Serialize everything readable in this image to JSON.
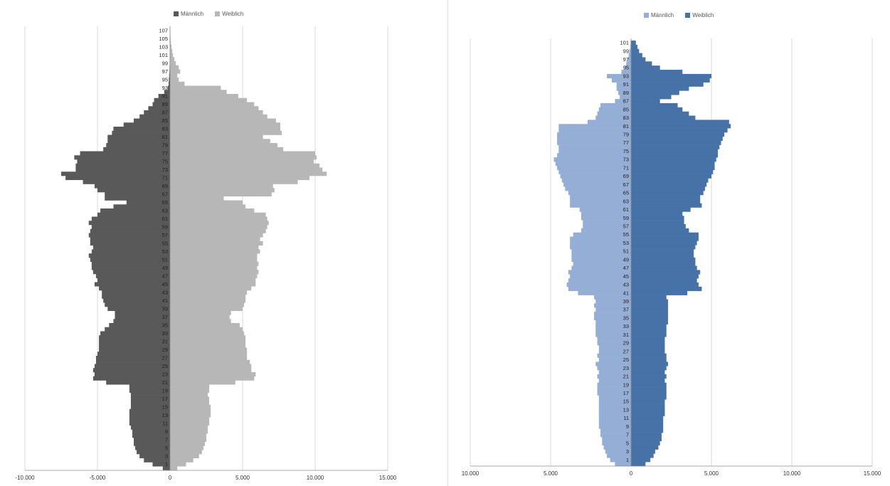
{
  "chart_data": [
    {
      "type": "bar",
      "orientation": "horizontal",
      "legend": [
        "Männlich",
        "Weiblich"
      ],
      "legend_position": "top",
      "xlim": [
        -10000,
        15000
      ],
      "x_ticks": [
        -10000,
        -5000,
        0,
        5000,
        10000,
        15000
      ],
      "x_tick_labels": [
        "-10.000",
        "-5.000",
        "0",
        "5.000",
        "10.000",
        "15.000"
      ],
      "grid": true,
      "colors": {
        "Männlich": "#595959",
        "Weiblich": "#b7b7b7"
      },
      "age_labels": [
        "1",
        "3",
        "5",
        "7",
        "9",
        "11",
        "13",
        "15",
        "17",
        "19",
        "21",
        "23",
        "25",
        "27",
        "29",
        "31",
        "33",
        "35",
        "37",
        "39",
        "41",
        "43",
        "45",
        "47",
        "49",
        "51",
        "53",
        "55",
        "57",
        "59",
        "61",
        "63",
        "65",
        "67",
        "69",
        "71",
        "73",
        "75",
        "77",
        "79",
        "81",
        "83",
        "85",
        "87",
        "89",
        "91",
        "93",
        "95",
        "97",
        "99",
        "101",
        "103",
        "105",
        "107"
      ],
      "ages": [
        0,
        1,
        2,
        3,
        4,
        5,
        6,
        7,
        8,
        9,
        10,
        11,
        12,
        13,
        14,
        15,
        16,
        17,
        18,
        19,
        20,
        21,
        22,
        23,
        24,
        25,
        26,
        27,
        28,
        29,
        30,
        31,
        32,
        33,
        34,
        35,
        36,
        37,
        38,
        39,
        40,
        41,
        42,
        43,
        44,
        45,
        46,
        47,
        48,
        49,
        50,
        51,
        52,
        53,
        54,
        55,
        56,
        57,
        58,
        59,
        60,
        61,
        62,
        63,
        64,
        65,
        66,
        67,
        68,
        69,
        70,
        71,
        72,
        73,
        74,
        75,
        76,
        77,
        78,
        79,
        80,
        81,
        82,
        83,
        84,
        85,
        86,
        87,
        88,
        89,
        90,
        91,
        92,
        93,
        94,
        95,
        96,
        97,
        98,
        99,
        100,
        101,
        102,
        103,
        104,
        105,
        106,
        107
      ],
      "series": [
        {
          "name": "Männlich",
          "values": [
            -500,
            -1200,
            -1800,
            -2100,
            -2300,
            -2400,
            -2500,
            -2500,
            -2600,
            -2600,
            -2700,
            -2800,
            -2800,
            -2800,
            -2800,
            -2700,
            -2700,
            -2700,
            -2700,
            -2800,
            -2800,
            -4400,
            -5300,
            -5200,
            -5300,
            -5200,
            -5100,
            -5100,
            -5000,
            -4900,
            -4900,
            -4900,
            -4900,
            -4800,
            -4500,
            -4200,
            -3900,
            -3800,
            -3800,
            -4300,
            -4500,
            -4600,
            -4700,
            -4700,
            -4900,
            -5200,
            -5000,
            -5100,
            -5300,
            -5400,
            -5400,
            -5500,
            -5600,
            -5400,
            -5300,
            -5500,
            -5500,
            -5600,
            -5500,
            -5400,
            -5600,
            -5400,
            -5000,
            -4800,
            -3900,
            -3000,
            -4500,
            -4500,
            -5000,
            -5200,
            -6000,
            -7200,
            -7500,
            -6500,
            -6500,
            -6400,
            -6600,
            -6200,
            -4600,
            -4400,
            -4300,
            -4300,
            -4000,
            -3900,
            -3200,
            -2500,
            -2100,
            -1800,
            -1500,
            -1200,
            -1100,
            -800,
            -400,
            -150,
            -100,
            -80,
            -60,
            -40,
            -30,
            -20,
            -10,
            -5,
            -3,
            -2,
            -1,
            0,
            0,
            0
          ]
        },
        {
          "name": "Weiblich",
          "values": [
            500,
            1100,
            1600,
            2000,
            2200,
            2300,
            2400,
            2500,
            2500,
            2600,
            2600,
            2700,
            2700,
            2800,
            2800,
            2800,
            2700,
            2700,
            2600,
            2700,
            2700,
            4500,
            5800,
            5900,
            5600,
            5600,
            5500,
            5300,
            5300,
            5300,
            5200,
            5200,
            5200,
            5100,
            5000,
            4800,
            4200,
            4100,
            4200,
            5000,
            5100,
            5200,
            5200,
            5300,
            5600,
            5900,
            5900,
            6000,
            6100,
            6000,
            6100,
            6000,
            6000,
            6200,
            6100,
            6400,
            6200,
            6400,
            6600,
            6700,
            6800,
            6700,
            6600,
            5800,
            5200,
            5000,
            3700,
            7000,
            7200,
            7100,
            8800,
            9600,
            10800,
            10500,
            10300,
            9900,
            10100,
            10000,
            7800,
            7400,
            6900,
            6400,
            7700,
            7600,
            7600,
            7300,
            6700,
            6400,
            6100,
            5800,
            5300,
            4700,
            3900,
            3500,
            1000,
            600,
            500,
            700,
            600,
            400,
            300,
            200,
            150,
            100,
            60,
            40,
            20,
            10
          ]
        }
      ]
    },
    {
      "type": "bar",
      "orientation": "horizontal",
      "legend": [
        "Männlich",
        "Weiblich"
      ],
      "legend_position": "top",
      "xlim": [
        -10000,
        15000
      ],
      "x_ticks": [
        -10000,
        -5000,
        0,
        5000,
        10000,
        15000
      ],
      "x_tick_labels": [
        "10.000",
        "5.000",
        "0",
        "5.000",
        "10.000",
        "15.000"
      ],
      "grid": true,
      "colors": {
        "Männlich": "#95aed5",
        "Weiblich": "#4672a8"
      },
      "age_labels": [
        "1",
        "3",
        "5",
        "7",
        "9",
        "11",
        "13",
        "15",
        "17",
        "19",
        "21",
        "23",
        "25",
        "27",
        "29",
        "31",
        "33",
        "35",
        "37",
        "39",
        "41",
        "43",
        "45",
        "47",
        "49",
        "51",
        "53",
        "55",
        "57",
        "59",
        "61",
        "63",
        "65",
        "67",
        "69",
        "71",
        "73",
        "75",
        "77",
        "79",
        "81",
        "83",
        "85",
        "87",
        "89",
        "91",
        "93",
        "95",
        "97",
        "99",
        "101"
      ],
      "ages": [
        0,
        1,
        2,
        3,
        4,
        5,
        6,
        7,
        8,
        9,
        10,
        11,
        12,
        13,
        14,
        15,
        16,
        17,
        18,
        19,
        20,
        21,
        22,
        23,
        24,
        25,
        26,
        27,
        28,
        29,
        30,
        31,
        32,
        33,
        34,
        35,
        36,
        37,
        38,
        39,
        40,
        41,
        42,
        43,
        44,
        45,
        46,
        47,
        48,
        49,
        50,
        51,
        52,
        53,
        54,
        55,
        56,
        57,
        58,
        59,
        60,
        61,
        62,
        63,
        64,
        65,
        66,
        67,
        68,
        69,
        70,
        71,
        72,
        73,
        74,
        75,
        76,
        77,
        78,
        79,
        80,
        81,
        82,
        83,
        84,
        85,
        86,
        87,
        88,
        89,
        90,
        91,
        92,
        93,
        94,
        95,
        96,
        97,
        98,
        99,
        100,
        101
      ],
      "series": [
        {
          "name": "Männlich",
          "values": [
            -1000,
            -1300,
            -1500,
            -1600,
            -1700,
            -1800,
            -1800,
            -1900,
            -1900,
            -2000,
            -2000,
            -2000,
            -2000,
            -2000,
            -2000,
            -2000,
            -2000,
            -2100,
            -2100,
            -2100,
            -2000,
            -2100,
            -2000,
            -2100,
            -2200,
            -2000,
            -2100,
            -2000,
            -2000,
            -2100,
            -2100,
            -2200,
            -2200,
            -2200,
            -2200,
            -2300,
            -2300,
            -2200,
            -2300,
            -2200,
            -2300,
            -3300,
            -3900,
            -4000,
            -3900,
            -3800,
            -3900,
            -3700,
            -3600,
            -3700,
            -3700,
            -3700,
            -3800,
            -3800,
            -3800,
            -3600,
            -3100,
            -3000,
            -3000,
            -3100,
            -3100,
            -3200,
            -3800,
            -3800,
            -3800,
            -3900,
            -4100,
            -4200,
            -4300,
            -4400,
            -4500,
            -4600,
            -4700,
            -4800,
            -4600,
            -4500,
            -4500,
            -4600,
            -4600,
            -4600,
            -4500,
            -4500,
            -2700,
            -2200,
            -2100,
            -2000,
            -1900,
            -1000,
            -700,
            -800,
            -900,
            -900,
            -1200,
            -1500,
            -600,
            -400,
            -300,
            -200,
            -150,
            -100,
            -50,
            -30
          ]
        },
        {
          "name": "Weiblich",
          "values": [
            900,
            1200,
            1400,
            1500,
            1700,
            1800,
            1900,
            1900,
            2000,
            2000,
            2000,
            2000,
            2100,
            2100,
            2100,
            2100,
            2200,
            2200,
            2200,
            2200,
            2100,
            2200,
            2100,
            2200,
            2300,
            2200,
            2200,
            2100,
            2100,
            2100,
            2100,
            2200,
            2200,
            2200,
            2300,
            2300,
            2300,
            2300,
            2300,
            2300,
            2200,
            3500,
            4400,
            4200,
            4100,
            4200,
            4300,
            4100,
            4000,
            4000,
            3900,
            3900,
            4000,
            4100,
            4200,
            4200,
            3600,
            3400,
            3300,
            3300,
            3200,
            3700,
            4400,
            4300,
            4300,
            4500,
            4600,
            4700,
            4800,
            5000,
            5100,
            5200,
            5200,
            5300,
            5400,
            5400,
            5500,
            5600,
            5700,
            5800,
            6000,
            6200,
            6100,
            4000,
            3600,
            3200,
            2900,
            1800,
            2500,
            3000,
            3600,
            4500,
            4900,
            5000,
            3200,
            1800,
            1300,
            900,
            700,
            500,
            400,
            300
          ]
        }
      ]
    }
  ]
}
